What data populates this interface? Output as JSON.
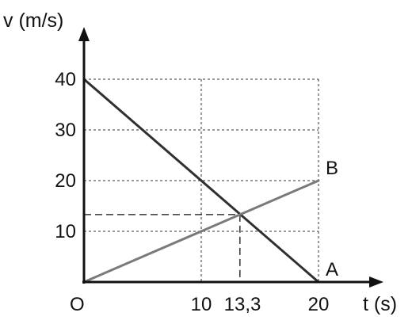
{
  "chart_data": {
    "type": "line",
    "xlabel": "t (s)",
    "ylabel": "v (m/s)",
    "xlim": [
      0,
      20
    ],
    "ylim": [
      0,
      40
    ],
    "x_ticks": [
      {
        "value": 10,
        "label": "10"
      },
      {
        "value": 13.3,
        "label": "13,3"
      },
      {
        "value": 20,
        "label": "20"
      }
    ],
    "y_ticks": [
      {
        "value": 10,
        "label": "10"
      },
      {
        "value": 20,
        "label": "20"
      },
      {
        "value": 30,
        "label": "30"
      },
      {
        "value": 40,
        "label": "40"
      }
    ],
    "origin_label": "O",
    "grid": true,
    "series": [
      {
        "name": "A",
        "x": [
          0,
          20
        ],
        "y": [
          40,
          0
        ],
        "color": "#303030"
      },
      {
        "name": "B",
        "x": [
          0,
          20
        ],
        "y": [
          0,
          20
        ],
        "color": "#7a7a7a"
      }
    ],
    "intersection": {
      "x": 13.3,
      "y": 13.3
    }
  }
}
